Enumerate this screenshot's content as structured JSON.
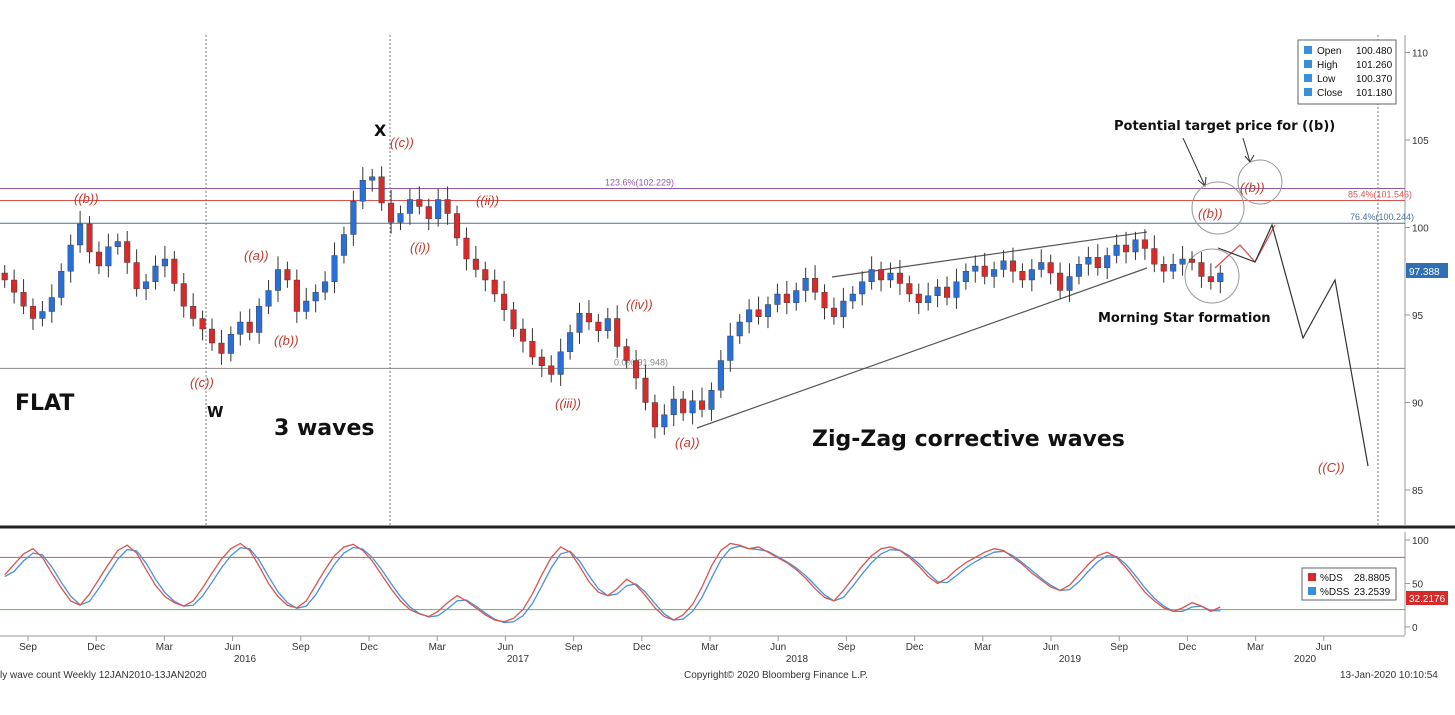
{
  "chart_data": [
    {
      "type": "candlestick",
      "panel": "price",
      "y_axis": "right",
      "ylim": [
        83,
        111
      ],
      "y_ticks": [
        85,
        90,
        95,
        100,
        105,
        110
      ],
      "grid": false,
      "x_labels": [
        "Sep",
        "Dec",
        "Mar",
        "Jun",
        "Sep",
        "Dec",
        "Mar",
        "Jun",
        "Sep",
        "Dec",
        "Mar",
        "Jun",
        "Sep",
        "Dec",
        "Mar",
        "Jun",
        "Sep",
        "Dec",
        "Mar",
        "Jun"
      ],
      "year_labels": [
        "2016",
        "2017",
        "2018",
        "2019",
        "2020"
      ],
      "ohlc_info": [
        {
          "label": "Open",
          "value": "100.480"
        },
        {
          "label": "High",
          "value": "101.260"
        },
        {
          "label": "Low",
          "value": "100.370"
        },
        {
          "label": "Close",
          "value": "101.180"
        }
      ],
      "last_price_tag": "97.388",
      "close_series": [
        97.0,
        96.3,
        95.5,
        94.8,
        95.2,
        96.0,
        97.5,
        99.0,
        100.2,
        98.6,
        97.8,
        98.9,
        99.2,
        98.0,
        96.5,
        96.9,
        97.8,
        98.2,
        96.8,
        95.5,
        94.8,
        94.2,
        93.4,
        92.8,
        93.9,
        94.6,
        94.0,
        95.5,
        96.4,
        97.6,
        97.0,
        95.2,
        95.8,
        96.3,
        96.9,
        98.4,
        99.6,
        101.5,
        102.7,
        102.9,
        101.4,
        100.3,
        100.8,
        101.6,
        101.2,
        100.5,
        101.6,
        100.8,
        99.4,
        98.2,
        97.6,
        97.0,
        96.2,
        95.3,
        94.2,
        93.5,
        92.6,
        92.1,
        91.6,
        92.9,
        94.0,
        95.1,
        94.6,
        94.1,
        94.8,
        93.2,
        92.4,
        91.4,
        90.0,
        88.6,
        89.3,
        90.2,
        89.4,
        90.1,
        89.6,
        90.7,
        92.4,
        93.8,
        94.6,
        95.3,
        94.9,
        95.6,
        96.2,
        95.7,
        96.4,
        97.1,
        96.3,
        95.4,
        94.9,
        95.8,
        96.2,
        96.9,
        97.6,
        97.0,
        97.4,
        96.8,
        96.2,
        95.7,
        96.1,
        96.6,
        96.0,
        96.9,
        97.5,
        97.8,
        97.2,
        97.6,
        98.1,
        97.5,
        97.0,
        97.6,
        98.0,
        97.4,
        96.4,
        97.2,
        97.9,
        98.3,
        97.7,
        98.4,
        99.0,
        98.6,
        99.3,
        98.8,
        97.9,
        97.5,
        97.9,
        98.2,
        98.0,
        97.2,
        96.9,
        97.4
      ],
      "fib_levels": [
        {
          "label": "123.6%(102.229)",
          "value": 102.229,
          "color": "#8e5aa8"
        },
        {
          "label": "85.4%(101.546)",
          "value": 101.546,
          "color": "#d9534f"
        },
        {
          "label": "76.4%(100.244)",
          "value": 100.244,
          "color": "#4a6fa5"
        },
        {
          "label": "0.0%(91.948)",
          "value": 91.948,
          "color": "#888888"
        }
      ],
      "wave_labels": [
        "((b))",
        "((a))",
        "((b))",
        "((c))",
        "((c))",
        "((ii))",
        "((i))",
        "((iv))",
        "((iii))",
        "((a))",
        "((b))",
        "((b))",
        "((C))"
      ],
      "annotations": {
        "flat": "FLAT",
        "w": "W",
        "three_waves": "3 waves",
        "x": "X",
        "zigzag": "Zig-Zag corrective waves",
        "morning_star": "Morning Star formation",
        "target": "Potential target price for ((b))"
      }
    },
    {
      "type": "line",
      "panel": "oscillator",
      "ylim": [
        0,
        100
      ],
      "y_ticks": [
        0,
        50,
        100
      ],
      "reference_lines": [
        80,
        20
      ],
      "series": [
        {
          "name": "%DS",
          "value_label": "28.8805",
          "color": "#d9534f"
        },
        {
          "name": "%DSS",
          "value_label": "23.2539",
          "color": "#4a90d9"
        }
      ],
      "last_value_tag": "32.2176",
      "osc_series": [
        60,
        72,
        84,
        90,
        80,
        62,
        45,
        30,
        25,
        38,
        55,
        72,
        88,
        94,
        85,
        66,
        48,
        35,
        28,
        24,
        30,
        45,
        62,
        78,
        90,
        96,
        88,
        70,
        50,
        35,
        25,
        22,
        30,
        48,
        66,
        82,
        92,
        95,
        88,
        76,
        60,
        44,
        30,
        20,
        15,
        12,
        18,
        28,
        36,
        30,
        22,
        14,
        8,
        6,
        10,
        20,
        38,
        60,
        80,
        92,
        86,
        70,
        52,
        40,
        36,
        44,
        55,
        48,
        36,
        22,
        12,
        8,
        14,
        26,
        46,
        70,
        88,
        96,
        94,
        90,
        92,
        86,
        80,
        74,
        66,
        56,
        44,
        34,
        30,
        42,
        56,
        70,
        82,
        90,
        92,
        88,
        80,
        70,
        58,
        50,
        56,
        66,
        74,
        80,
        86,
        90,
        88,
        80,
        72,
        62,
        54,
        46,
        42,
        48,
        60,
        72,
        82,
        86,
        80,
        68,
        54,
        40,
        30,
        22,
        18,
        22,
        28,
        24,
        18,
        23
      ]
    }
  ],
  "footer": {
    "left": "ly wave count  Weekly 12JAN2010-13JAN2020",
    "center": "Copyright© 2020 Bloomberg Finance L.P.",
    "right": "13-Jan-2020 10:10:54"
  }
}
